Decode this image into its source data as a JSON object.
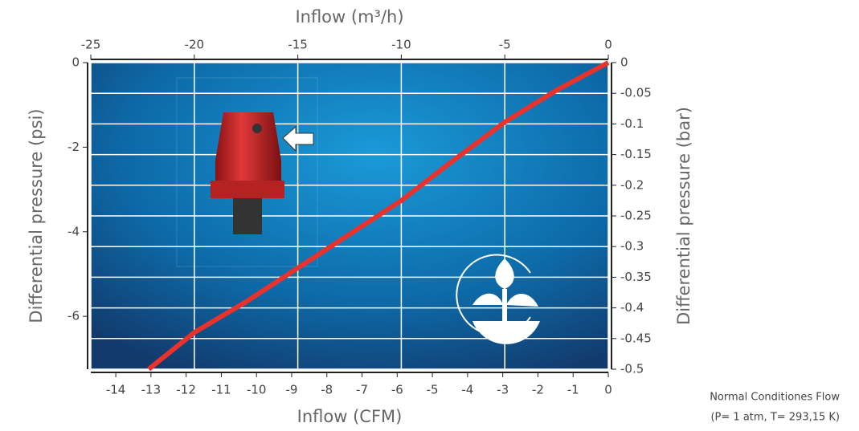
{
  "chart_data": {
    "type": "line",
    "x_label": "Inflow (CFM)",
    "x2_label": "Inflow (m³/h)",
    "y_label": "Differential pressure (psi)",
    "y2_label": "Differential pressure (bar)",
    "note": [
      "Normal Conditiones Flow",
      "(P= 1 atm, T= 293,15 K)"
    ],
    "xlim": [
      -14.71,
      0
    ],
    "xticks": [
      -14,
      -13,
      -12,
      -11,
      -10,
      -9,
      -8,
      -7,
      -6,
      -5,
      -4,
      -3,
      -2,
      -1,
      0
    ],
    "x2lim": [
      -25,
      0
    ],
    "x2ticks": [
      -25,
      -20,
      -15,
      -10,
      -5,
      0
    ],
    "ylim": [
      -7.25,
      0
    ],
    "yticks": [
      -6,
      -4,
      -2,
      0
    ],
    "y2lim": [
      -0.5,
      0
    ],
    "y2ticks": [
      0,
      -0.05,
      -0.1,
      -0.15,
      -0.2,
      -0.25,
      -0.3,
      -0.35,
      -0.4,
      -0.45,
      -0.5
    ],
    "grid": true,
    "series": [
      {
        "color": "#e8322b",
        "axis": "y2",
        "xaxis": "x2",
        "x": [
          0,
          -2.5,
          -5,
          -7.5,
          -10,
          -12.5,
          -15,
          -17.5,
          -20,
          -22.2
        ],
        "values": [
          0,
          -0.045,
          -0.097,
          -0.16,
          -0.225,
          -0.28,
          -0.335,
          -0.39,
          -0.44,
          -0.5
        ]
      }
    ]
  }
}
